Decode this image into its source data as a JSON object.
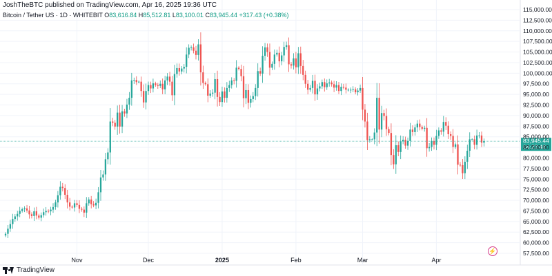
{
  "header": {
    "published": "JoshTheBTC published on TradingView.com, Apr 16, 2025 19:36 UTC"
  },
  "ohlc": {
    "symbol": "Bitcoin / Tether US · 1D · WHITEBIT",
    "open_label": "O",
    "open": "83,616.84",
    "high_label": "H",
    "high": "85,512.81",
    "low_label": "L",
    "low": "83,100.01",
    "close_label": "C",
    "close": "83,945.44",
    "change": "+317.43 (+0.38%)"
  },
  "brand": {
    "name": "TradingView"
  },
  "colors": {
    "up": "#26a69a",
    "down": "#ef5350",
    "grid": "#f0f3fa",
    "axis_text": "#131722",
    "price_line": "#26a69a"
  },
  "chart_data": {
    "type": "candlestick",
    "title": "",
    "xlabel": "",
    "ylabel": "",
    "ylim": [
      57500,
      115000
    ],
    "y_ticks": [
      "115,000.00",
      "112,500.00",
      "110,000.00",
      "107,500.00",
      "105,000.00",
      "102,500.00",
      "100,000.00",
      "97,500.00",
      "95,000.00",
      "92,500.00",
      "90,000.00",
      "87,500.00",
      "85,000.00",
      "82,500.00",
      "80,000.00",
      "77,500.00",
      "75,000.00",
      "72,500.00",
      "70,000.00",
      "67,500.00",
      "65,000.00",
      "62,500.00",
      "60,000.00",
      "57,500.00"
    ],
    "x_ticks": [
      {
        "label": "Nov",
        "date": "2024-11-01"
      },
      {
        "label": "Dec",
        "date": "2024-12-01"
      },
      {
        "label": "2025",
        "date": "2025-01-01"
      },
      {
        "label": "Feb",
        "date": "2025-02-01"
      },
      {
        "label": "Mar",
        "date": "2025-03-01"
      },
      {
        "label": "Apr",
        "date": "2025-04-01"
      }
    ],
    "start_date": "2024-10-02",
    "last_price": "83,945.44",
    "countdown": "04:23:46",
    "closes": [
      62100,
      63300,
      64400,
      65600,
      66200,
      66800,
      67500,
      67900,
      68100,
      67600,
      66700,
      66300,
      67400,
      66400,
      65900,
      66500,
      67200,
      67500,
      67400,
      67800,
      68400,
      69500,
      71200,
      73200,
      72900,
      71300,
      69500,
      68500,
      68300,
      69300,
      68900,
      68000,
      67800,
      67100,
      69300,
      70200,
      69100,
      68800,
      69400,
      71900,
      75400,
      76100,
      79700,
      81300,
      88600,
      88300,
      87400,
      90700,
      87400,
      91000,
      90500,
      92600,
      94200,
      98300,
      98400,
      97900,
      98000,
      95800,
      93100,
      95800,
      97200,
      96400,
      97600,
      97200,
      97000,
      97500,
      96200,
      98300,
      99200,
      98000,
      94800,
      99800,
      101200,
      100400,
      101100,
      101500,
      104400,
      106000,
      106100,
      105300,
      104300,
      106800,
      100200,
      97700,
      97400,
      94700,
      95200,
      95400,
      98600,
      94400,
      93200,
      95700,
      94200,
      96500,
      97200,
      98300,
      98200,
      101300,
      101000,
      99300,
      94100,
      96000,
      93000,
      93900,
      94600,
      96500,
      100500,
      99900,
      104100,
      106100,
      105000,
      101300,
      102200,
      104400,
      104800,
      102800,
      104200,
      106200,
      106600,
      102100,
      101800,
      103500,
      101400,
      104700,
      101700,
      99600,
      97500,
      96100,
      96500,
      98200,
      95000,
      96400,
      96900,
      97900,
      96700,
      97600,
      97800,
      97400,
      96600,
      97200,
      95800,
      96800,
      96600,
      96100,
      96100,
      96100,
      96200,
      95500,
      95900,
      96500,
      91400,
      88600,
      84200,
      84400,
      84400,
      86000,
      94200,
      86700,
      90600,
      89900,
      86800,
      85900,
      80700,
      78500,
      83000,
      81400,
      83900,
      84300,
      82900,
      84000,
      86700,
      86100,
      87200,
      88100,
      87300,
      86900,
      87100,
      82300,
      82600,
      84000,
      83100,
      85200,
      86500,
      86200,
      88500,
      87600,
      85600,
      85200,
      82600,
      83200,
      78400,
      78300,
      76400,
      79100,
      81700,
      84400,
      84400,
      83100,
      85300,
      85300,
      83600,
      83945
    ]
  }
}
